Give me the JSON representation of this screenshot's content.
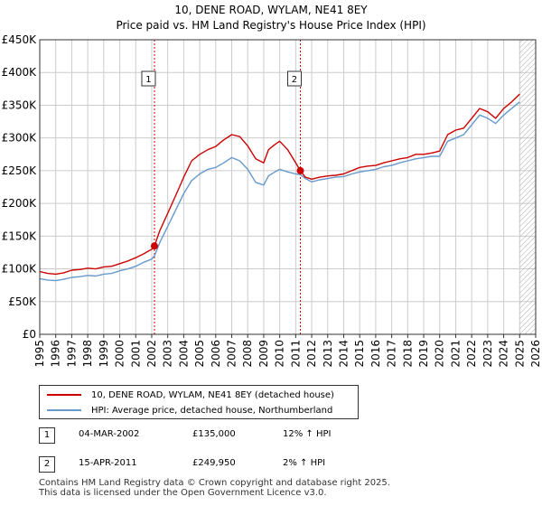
{
  "title": "10, DENE ROAD, WYLAM, NE41 8EY",
  "subtitle": "Price paid vs. HM Land Registry's House Price Index (HPI)",
  "colors": {
    "property": "#cc0000",
    "hpi": "#6699cc",
    "marker_line": "#cc0000",
    "grid": "#cccccc",
    "hatch": "#999999"
  },
  "chart_data": {
    "type": "line",
    "xlim": [
      1995,
      2026
    ],
    "ylim": [
      0,
      450000
    ],
    "y_ticks": [
      {
        "value": 0,
        "label": "£0"
      },
      {
        "value": 50000,
        "label": "£50K"
      },
      {
        "value": 100000,
        "label": "£100K"
      },
      {
        "value": 150000,
        "label": "£150K"
      },
      {
        "value": 200000,
        "label": "£200K"
      },
      {
        "value": 250000,
        "label": "£250K"
      },
      {
        "value": 300000,
        "label": "£300K"
      },
      {
        "value": 350000,
        "label": "£350K"
      },
      {
        "value": 400000,
        "label": "£400K"
      },
      {
        "value": 450000,
        "label": "£450K"
      }
    ],
    "x_ticks": [
      "1995",
      "1996",
      "1997",
      "1998",
      "1999",
      "2000",
      "2001",
      "2002",
      "2003",
      "2004",
      "2005",
      "2006",
      "2007",
      "2008",
      "2009",
      "2010",
      "2011",
      "2012",
      "2013",
      "2014",
      "2015",
      "2016",
      "2017",
      "2018",
      "2019",
      "2020",
      "2021",
      "2022",
      "2023",
      "2024",
      "2025",
      "2026"
    ],
    "forecast_start": 2025.0,
    "series": [
      {
        "name": "10, DENE ROAD, WYLAM, NE41 8EY (detached house)",
        "color": "#cc0000",
        "x": [
          1995.0,
          1995.5,
          1996.0,
          1996.5,
          1997.0,
          1997.5,
          1998.0,
          1998.5,
          1999.0,
          1999.5,
          2000.0,
          2000.5,
          2001.0,
          2001.5,
          2002.0,
          2002.17,
          2002.5,
          2003.0,
          2003.5,
          2004.0,
          2004.5,
          2005.0,
          2005.5,
          2006.0,
          2006.5,
          2007.0,
          2007.5,
          2008.0,
          2008.5,
          2009.0,
          2009.3,
          2009.7,
          2010.0,
          2010.5,
          2011.0,
          2011.29,
          2011.6,
          2012.0,
          2012.5,
          2013.0,
          2013.5,
          2014.0,
          2014.5,
          2015.0,
          2015.5,
          2016.0,
          2016.5,
          2017.0,
          2017.5,
          2018.0,
          2018.5,
          2019.0,
          2019.5,
          2020.0,
          2020.5,
          2021.0,
          2021.5,
          2022.0,
          2022.5,
          2023.0,
          2023.5,
          2024.0,
          2024.5,
          2025.0
        ],
        "y": [
          96000,
          93000,
          92000,
          94000,
          98000,
          99000,
          101000,
          100000,
          103000,
          104000,
          108000,
          112000,
          117000,
          123000,
          130000,
          135000,
          158000,
          185000,
          212000,
          240000,
          265000,
          275000,
          282000,
          287000,
          297000,
          305000,
          302000,
          288000,
          268000,
          262000,
          282000,
          290000,
          295000,
          282000,
          262000,
          249950,
          240000,
          237000,
          240000,
          242000,
          243000,
          245000,
          250000,
          255000,
          257000,
          258000,
          262000,
          265000,
          268000,
          270000,
          275000,
          275000,
          277000,
          280000,
          305000,
          312000,
          315000,
          330000,
          345000,
          340000,
          330000,
          345000,
          355000,
          367000
        ]
      },
      {
        "name": "HPI: Average price, detached house, Northumberland",
        "color": "#6699cc",
        "x": [
          1995.0,
          1995.5,
          1996.0,
          1996.5,
          1997.0,
          1997.5,
          1998.0,
          1998.5,
          1999.0,
          1999.5,
          2000.0,
          2000.5,
          2001.0,
          2001.5,
          2002.0,
          2002.17,
          2002.5,
          2003.0,
          2003.5,
          2004.0,
          2004.5,
          2005.0,
          2005.5,
          2006.0,
          2006.5,
          2007.0,
          2007.5,
          2008.0,
          2008.5,
          2009.0,
          2009.3,
          2009.7,
          2010.0,
          2010.5,
          2011.0,
          2011.29,
          2011.6,
          2012.0,
          2012.5,
          2013.0,
          2013.5,
          2014.0,
          2014.5,
          2015.0,
          2015.5,
          2016.0,
          2016.5,
          2017.0,
          2017.5,
          2018.0,
          2018.5,
          2019.0,
          2019.5,
          2020.0,
          2020.5,
          2021.0,
          2021.5,
          2022.0,
          2022.5,
          2023.0,
          2023.5,
          2024.0,
          2024.5,
          2025.0
        ],
        "y": [
          85000,
          83000,
          82000,
          84000,
          87000,
          88000,
          90000,
          89000,
          92000,
          93000,
          97000,
          100000,
          104000,
          110000,
          115000,
          120000,
          140000,
          165000,
          190000,
          215000,
          235000,
          245000,
          252000,
          255000,
          262000,
          270000,
          265000,
          252000,
          232000,
          228000,
          242000,
          248000,
          252000,
          248000,
          245000,
          244000,
          238000,
          233000,
          236000,
          238000,
          240000,
          241000,
          245000,
          248000,
          250000,
          252000,
          256000,
          258000,
          262000,
          265000,
          268000,
          270000,
          272000,
          272000,
          295000,
          300000,
          305000,
          320000,
          335000,
          330000,
          322000,
          335000,
          345000,
          355000
        ]
      }
    ],
    "markers": [
      {
        "id": "1",
        "x": 2002.17,
        "y": 135000
      },
      {
        "id": "2",
        "x": 2011.29,
        "y": 249950
      }
    ]
  },
  "legend": {
    "items": [
      {
        "label": "10, DENE ROAD, WYLAM, NE41 8EY (detached house)"
      },
      {
        "label": "HPI: Average price, detached house, Northumberland"
      }
    ]
  },
  "annotations": [
    {
      "id": "1",
      "date": "04-MAR-2002",
      "price": "£135,000",
      "hpi": "12% ↑ HPI"
    },
    {
      "id": "2",
      "date": "15-APR-2011",
      "price": "£249,950",
      "hpi": "2% ↑ HPI"
    }
  ],
  "footer": {
    "line1": "Contains HM Land Registry data © Crown copyright and database right 2025.",
    "line2": "This data is licensed under the Open Government Licence v3.0."
  }
}
